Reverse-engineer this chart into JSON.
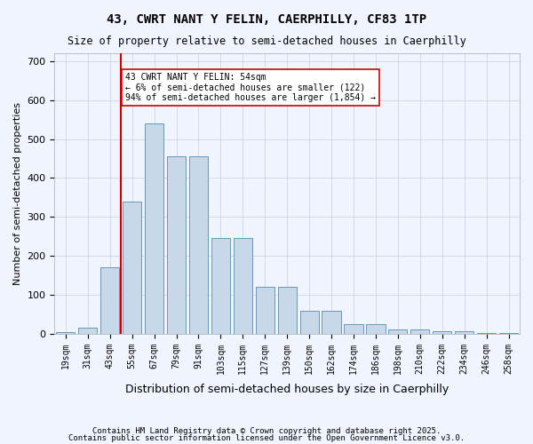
{
  "title": "43, CWRT NANT Y FELIN, CAERPHILLY, CF83 1TP",
  "subtitle": "Size of property relative to semi-detached houses in Caerphilly",
  "xlabel": "Distribution of semi-detached houses by size in Caerphilly",
  "ylabel": "Number of semi-detached properties",
  "categories": [
    "19sqm",
    "31sqm",
    "43sqm",
    "55sqm",
    "67sqm",
    "79sqm",
    "91sqm",
    "103sqm",
    "115sqm",
    "127sqm",
    "139sqm",
    "150sqm",
    "162sqm",
    "174sqm",
    "186sqm",
    "198sqm",
    "210sqm",
    "222sqm",
    "234sqm",
    "246sqm",
    "258sqm"
  ],
  "values": [
    5,
    15,
    170,
    340,
    540,
    455,
    455,
    245,
    245,
    120,
    120,
    60,
    60,
    25,
    25,
    12,
    12,
    7,
    7,
    2,
    2
  ],
  "bar_color": "#c8d8e8",
  "bar_edge_color": "#6699bb",
  "vline_x": 3,
  "vline_color": "#cc0000",
  "annotation_text": "43 CWRT NANT Y FELIN: 54sqm\n← 6% of semi-detached houses are smaller (122)\n94% of semi-detached houses are larger (1,854) →",
  "annotation_box_color": "#ffffff",
  "annotation_box_edge": "#cc0000",
  "ylim": [
    0,
    720
  ],
  "yticks": [
    0,
    100,
    200,
    300,
    400,
    500,
    600,
    700
  ],
  "footer1": "Contains HM Land Registry data © Crown copyright and database right 2025.",
  "footer2": "Contains public sector information licensed under the Open Government Licence v3.0.",
  "bg_color": "#f0f4ff",
  "plot_bg_color": "#f0f4ff",
  "grid_color": "#ccccdd"
}
